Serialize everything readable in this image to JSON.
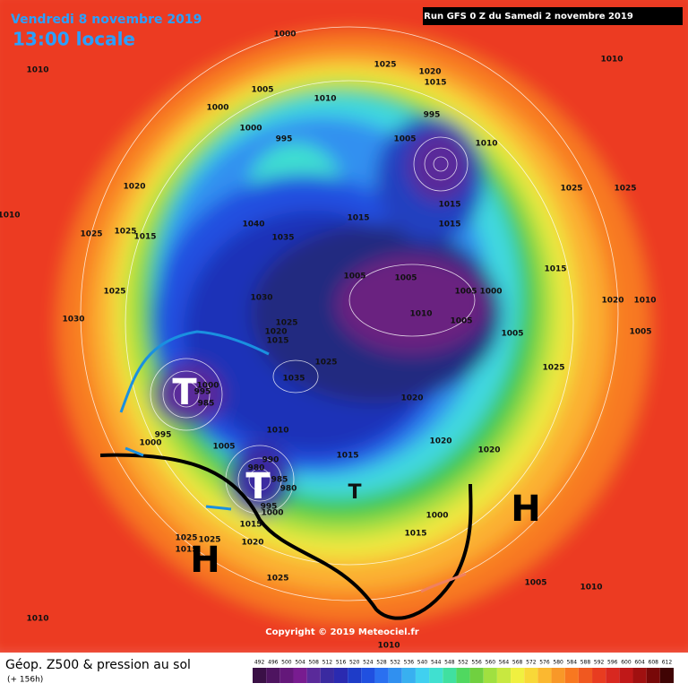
{
  "header": {
    "date": "Vendredi 8 novembre 2019",
    "time": "13:00 locale",
    "run": "Run GFS 0 Z du Samedi 2 novembre 2019"
  },
  "copyright": "Copyright © 2019 Meteociel.fr",
  "legend": {
    "title": "Géop. Z500 & pression au sol",
    "subtitle": "(+ 156h)",
    "scale": [
      492,
      496,
      500,
      504,
      508,
      512,
      516,
      520,
      524,
      528,
      532,
      536,
      540,
      544,
      548,
      552,
      556,
      560,
      564,
      568,
      572,
      576,
      580,
      584,
      588,
      592,
      596,
      600,
      604,
      608,
      612
    ],
    "colors": [
      "#3a1046",
      "#4e1460",
      "#64187a",
      "#781c90",
      "#5a2a9a",
      "#3a2aa0",
      "#2a2ab0",
      "#1e3cc8",
      "#2050e0",
      "#2a70f0",
      "#3090f0",
      "#38b0f0",
      "#40d0f0",
      "#40e0d0",
      "#40e0a0",
      "#50d860",
      "#70d040",
      "#a0e040",
      "#c8e840",
      "#f0f040",
      "#f8d838",
      "#fbb830",
      "#f89828",
      "#f87820",
      "#f05820",
      "#e83c20",
      "#d82820",
      "#c01818",
      "#a01010",
      "#780808",
      "#400404"
    ]
  },
  "systems": [
    "T",
    "T",
    "T",
    "H",
    "H"
  ],
  "isobars": [
    1010,
    1010,
    1025,
    1020,
    1015,
    1000,
    1005,
    1010,
    1000,
    995,
    1000,
    995,
    1005,
    1010,
    1020,
    1010,
    1025,
    1025,
    1015,
    1040,
    1035,
    1015,
    1015,
    1015,
    1025,
    1025,
    1025,
    1030,
    1005,
    1005,
    1005,
    1000,
    1015,
    1020,
    1010,
    1030,
    1010,
    1005,
    1025,
    1020,
    1015,
    1005,
    1005,
    1025,
    1035,
    1025,
    1020,
    995,
    985,
    1000,
    995,
    1000,
    1010,
    1005,
    1020,
    1020,
    1015,
    990,
    980,
    985,
    980,
    995,
    1000,
    1000,
    1015,
    1015,
    1025,
    1025,
    1020,
    1015,
    1025,
    1010,
    1010,
    1005,
    1010
  ]
}
